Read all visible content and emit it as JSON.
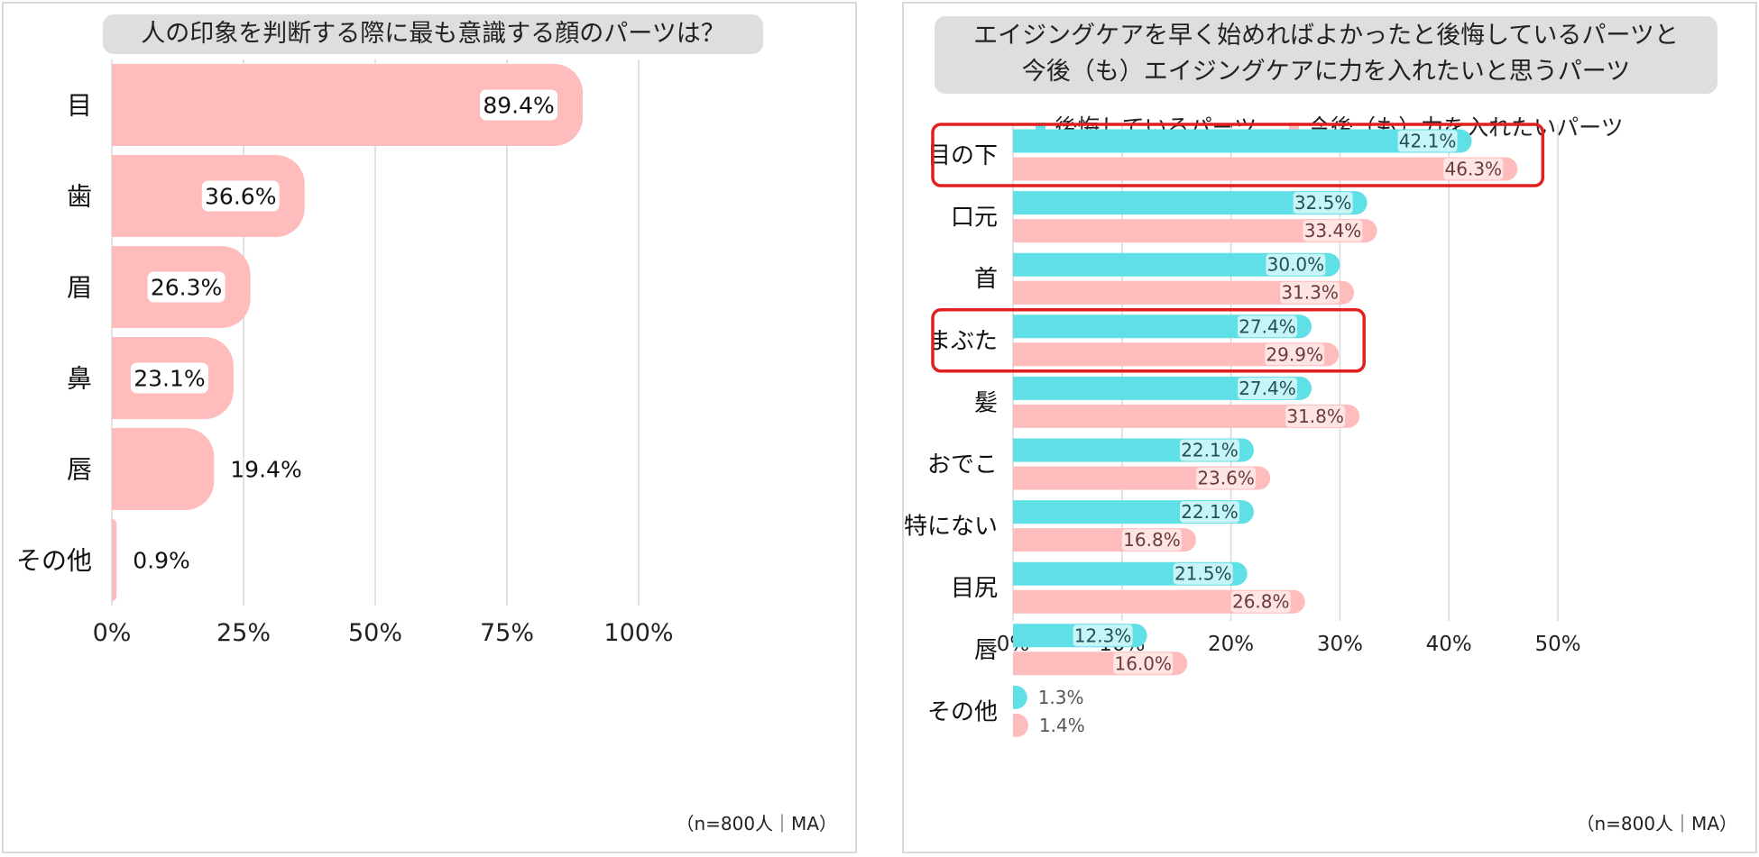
{
  "colors": {
    "cyan": "#5ee0e6",
    "pink": "#ffbcbc",
    "grid": "#d9d9d9",
    "highlight": "#e01f1f"
  },
  "chart_data": [
    {
      "type": "bar",
      "orientation": "horizontal",
      "title": "人の印象を判断する際に最も意識する顔のパーツは？",
      "categories": [
        "目",
        "歯",
        "眉",
        "鼻",
        "唇",
        "その他"
      ],
      "values": [
        89.4,
        36.6,
        26.3,
        23.1,
        19.4,
        0.9
      ],
      "value_labels": [
        "89.4%",
        "36.6%",
        "26.3%",
        "23.1%",
        "19.4%",
        "0.9%"
      ],
      "x_ticks": [
        "0%",
        "25%",
        "50%",
        "75%",
        "100%"
      ],
      "xlim": [
        0,
        100
      ],
      "note": "（n=800人｜MA）"
    },
    {
      "type": "bar",
      "orientation": "horizontal",
      "title_lines": [
        "エイジングケアを早く始めればよかったと後悔しているパーツと",
        "今後（も）エイジングケアに力を入れたいと思うパーツ"
      ],
      "categories": [
        "目の下",
        "口元",
        "首",
        "まぶた",
        "髪",
        "おでこ",
        "特にない",
        "目尻",
        "唇",
        "その他"
      ],
      "series": [
        {
          "name": "後悔しているパーツ",
          "values": [
            42.1,
            32.5,
            30.0,
            27.4,
            27.4,
            22.1,
            22.1,
            21.5,
            12.3,
            1.3
          ],
          "labels": [
            "42.1%",
            "32.5%",
            "30.0%",
            "27.4%",
            "27.4%",
            "22.1%",
            "22.1%",
            "21.5%",
            "12.3%",
            "1.3%"
          ]
        },
        {
          "name": "今後（も）力を入れたいパーツ",
          "values": [
            46.3,
            33.4,
            31.3,
            29.9,
            31.8,
            23.6,
            16.8,
            26.8,
            16.0,
            1.4
          ],
          "labels": [
            "46.3%",
            "33.4%",
            "31.3%",
            "29.9%",
            "31.8%",
            "23.6%",
            "16.8%",
            "26.8%",
            "16.0%",
            "1.4%"
          ]
        }
      ],
      "highlighted_categories": [
        "目の下",
        "まぶた"
      ],
      "x_ticks": [
        "0%",
        "10%",
        "20%",
        "30%",
        "40%",
        "50%"
      ],
      "xlim": [
        0,
        50
      ],
      "note": "（n=800人｜MA）"
    }
  ]
}
